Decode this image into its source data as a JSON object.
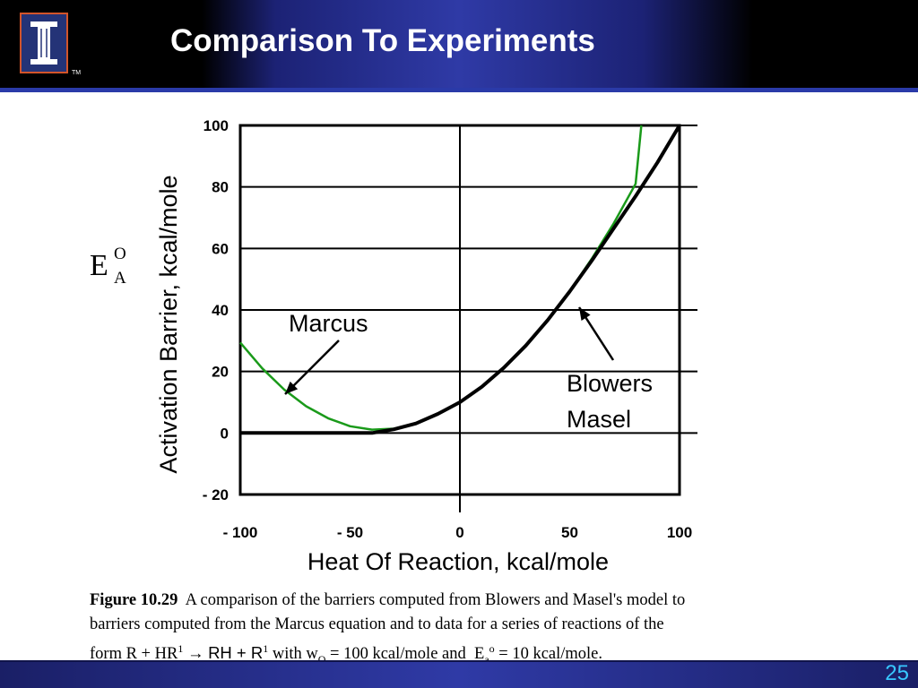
{
  "slide": {
    "title": "Comparison To Experiments",
    "page_number": "25",
    "logo_icon": "illinois-i-logo",
    "logo_tm": "TM"
  },
  "chart_data": {
    "type": "line",
    "title": "",
    "xlabel": "Heat Of Reaction, kcal/mole",
    "ylabel": "Activation Barrier, kcal/mole",
    "ylabel_symbol": {
      "base": "E",
      "sup": "O",
      "sub": "A"
    },
    "xlim": [
      -100,
      100
    ],
    "ylim": [
      -20,
      100
    ],
    "x_ticks": [
      "- 100",
      "- 50",
      "0",
      "50",
      "100"
    ],
    "x_tick_values": [
      -100,
      -50,
      0,
      50,
      100
    ],
    "y_ticks": [
      "100",
      "80",
      "60",
      "40",
      "20",
      "0",
      "- 20"
    ],
    "y_tick_values": [
      100,
      80,
      60,
      40,
      20,
      0,
      -20
    ],
    "grid": "horizontal",
    "series": [
      {
        "name": "Marcus",
        "color": "#1a9a1a",
        "x": [
          -100,
          -90,
          -80,
          -70,
          -60,
          -50,
          -40,
          -30,
          -20,
          -10,
          0,
          10,
          20,
          30,
          40,
          50,
          60,
          70,
          80,
          82.6
        ],
        "values": [
          29.4,
          21.0,
          14.1,
          8.7,
          4.8,
          2.2,
          1.1,
          1.4,
          3.1,
          6.2,
          10.0,
          15.0,
          21.2,
          28.4,
          36.7,
          46.1,
          56.6,
          68.1,
          81.0,
          100
        ]
      },
      {
        "name": "Blowers Masel",
        "color": "#000000",
        "x": [
          -100,
          -40,
          -30,
          -20,
          -10,
          0,
          10,
          20,
          30,
          40,
          50,
          60,
          70,
          80,
          90,
          100
        ],
        "values": [
          0,
          0,
          1.2,
          3.1,
          6.2,
          10.0,
          15.0,
          21.2,
          28.4,
          36.7,
          46.0,
          56.0,
          66.5,
          77.0,
          88.0,
          100
        ]
      }
    ],
    "annotations": [
      {
        "text": "Marcus",
        "x": -57,
        "y": 38
      },
      {
        "text": "Blowers",
        "x": 58,
        "y": 19
      },
      {
        "text": "Masel",
        "x": 58,
        "y": 8
      }
    ]
  },
  "caption": {
    "figure_label": "Figure 10.29",
    "line1": "A comparison of the barriers computed from Blowers and Masel's model to",
    "line2": "barriers computed from the Marcus equation and to data for a series of reactions of the",
    "line3_prefix": "form R + HR",
    "sup_1": "1",
    "arrow": "→",
    "rh_text": "RH + R",
    "sup_2": "1",
    "with_text": "with w",
    "w_sub": "O",
    "after_w": "= 100 kcal/mole and",
    "ea_base": "E",
    "ea_sub": "a",
    "ea_sup": "o",
    "after_ea": "= 10 kcal/mole."
  }
}
